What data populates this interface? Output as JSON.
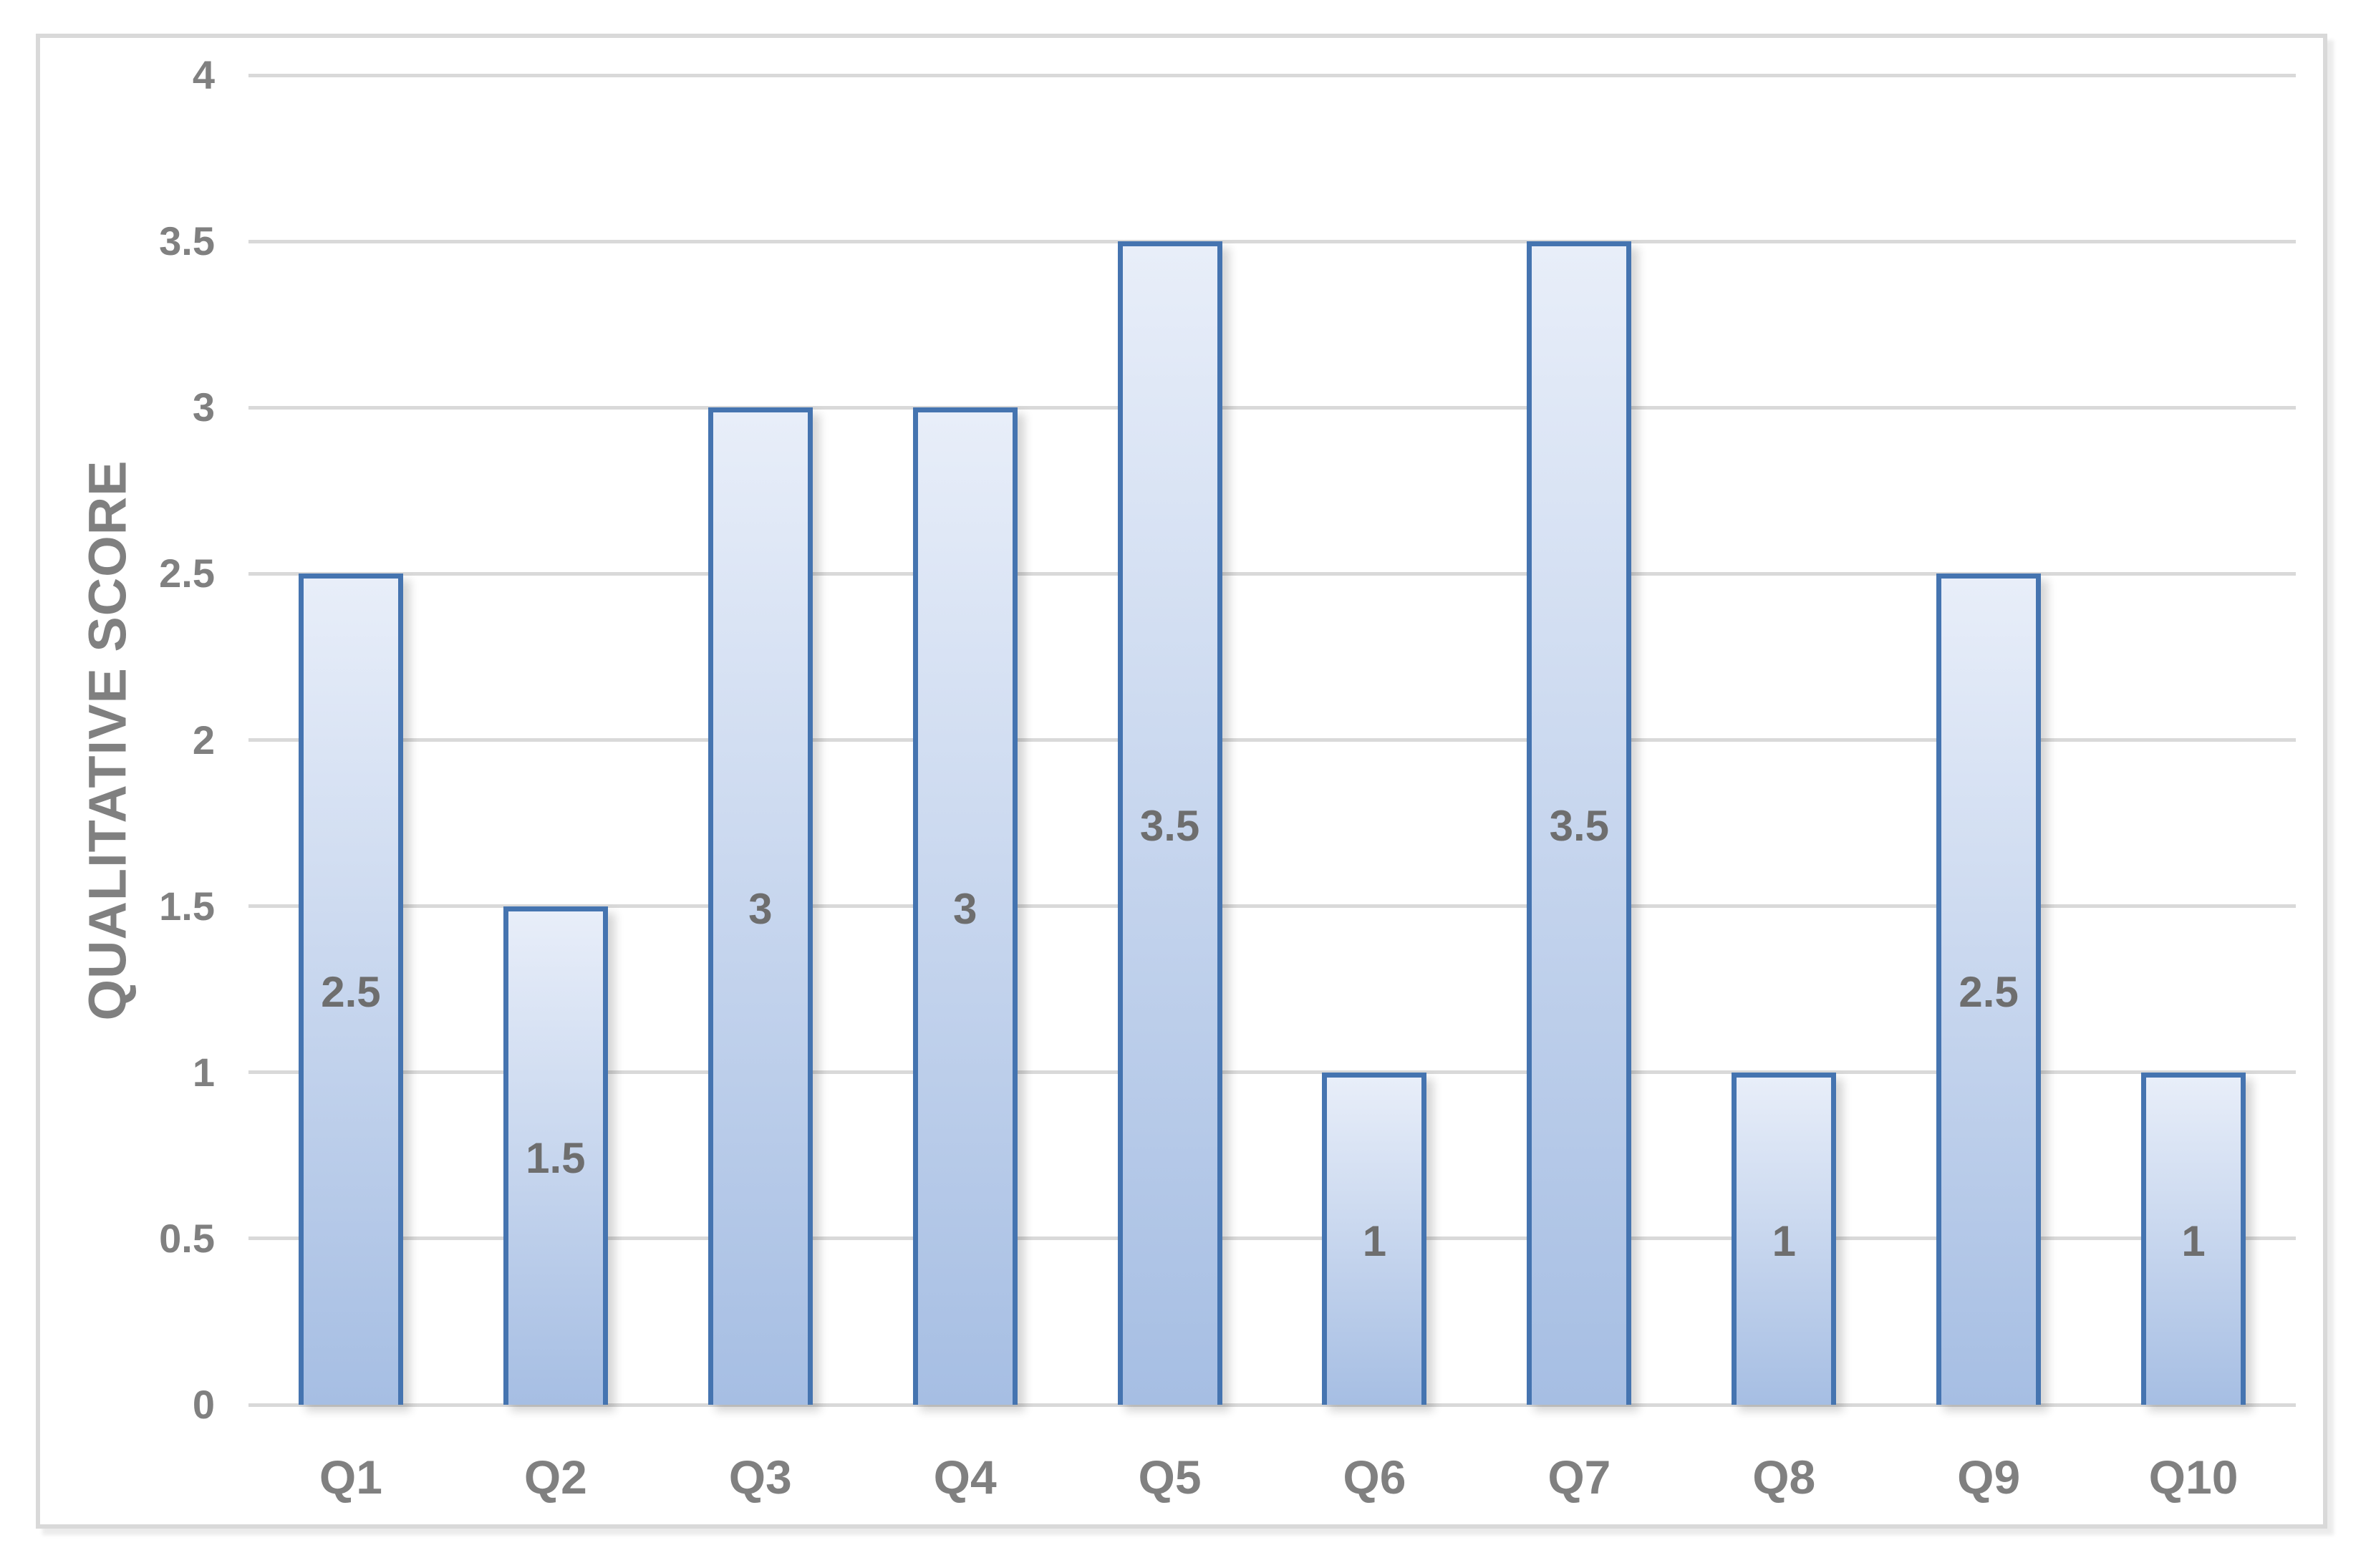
{
  "chart_data": {
    "type": "bar",
    "title": "",
    "xlabel": "",
    "ylabel": "QUALITATIVE SCORE",
    "categories": [
      "Q1",
      "Q2",
      "Q3",
      "Q4",
      "Q5",
      "Q6",
      "Q7",
      "Q8",
      "Q9",
      "Q10"
    ],
    "values": [
      2.5,
      1.5,
      3,
      3,
      3.5,
      1,
      3.5,
      1,
      2.5,
      1
    ],
    "bar_labels": [
      "2.5",
      "1.5",
      "3",
      "3",
      "3.5",
      "1",
      "3.5",
      "1",
      "2.5",
      "1"
    ],
    "ylim": [
      0,
      4
    ],
    "yticks": [
      {
        "value": 0,
        "label": "0"
      },
      {
        "value": 0.5,
        "label": "0.5"
      },
      {
        "value": 1,
        "label": "1"
      },
      {
        "value": 1.5,
        "label": "1.5"
      },
      {
        "value": 2,
        "label": "2"
      },
      {
        "value": 2.5,
        "label": "2.5"
      },
      {
        "value": 3,
        "label": "3"
      },
      {
        "value": 3.5,
        "label": "3.5"
      },
      {
        "value": 4,
        "label": "4"
      }
    ],
    "grid": true,
    "legend": false,
    "data_label_position": "center",
    "colors": {
      "background": "#ffffff",
      "frame_border": "#d9d9d9",
      "gridline": "#d9d9d9",
      "axis_text": "#808080",
      "data_label": "#6e6e6e",
      "bar_border": "#4574b0",
      "bar_fill_top": "#e8eef9",
      "bar_fill_bottom": "#a6bee3"
    }
  }
}
